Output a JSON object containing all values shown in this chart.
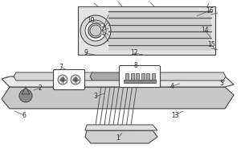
{
  "fig_width": 3.0,
  "fig_height": 2.0,
  "dpi": 100,
  "lc": "#444444",
  "lc2": "#666666",
  "fc_light": "#e0e0e0",
  "fc_lighter": "#eeeeee",
  "fc_dark": "#bbbbbb",
  "fc_white": "#ffffff"
}
